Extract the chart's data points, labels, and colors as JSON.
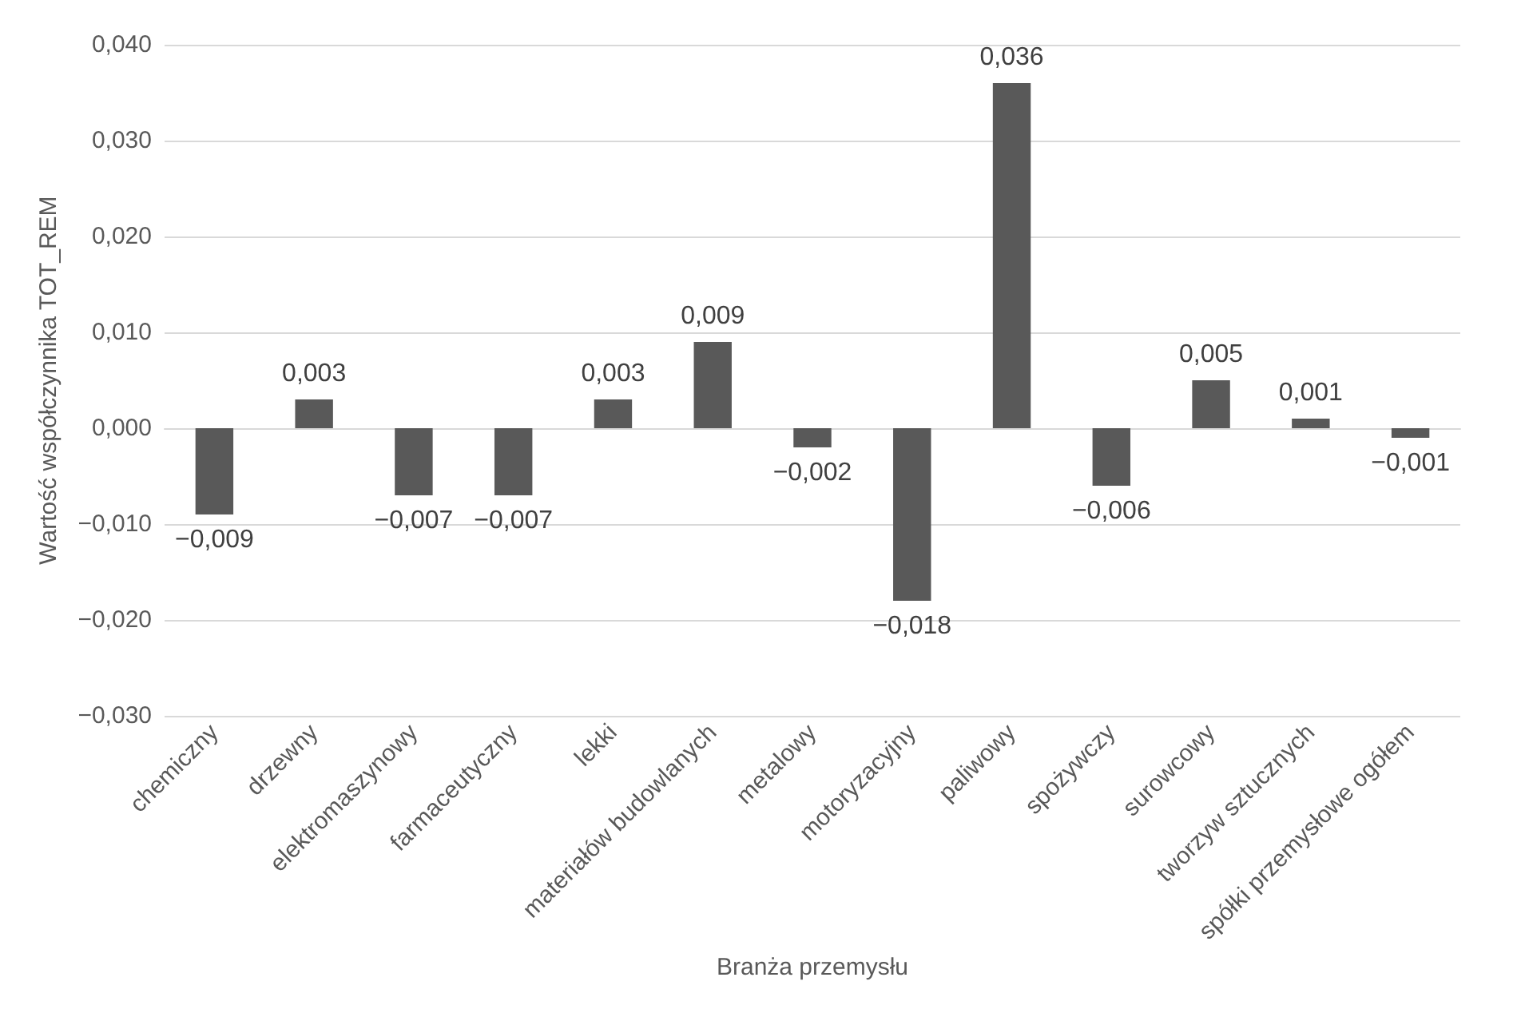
{
  "chart_data": {
    "type": "bar",
    "xlabel": "Branża przemysłu",
    "ylabel": "Wartość współczynnika TOT_REM",
    "categories": [
      "chemiczny",
      "drzewny",
      "elektromaszynowy",
      "farmaceutyczny",
      "lekki",
      "materiałów budowlanych",
      "metalowy",
      "motoryzacyjny",
      "paliwowy",
      "spożywczy",
      "surowcowy",
      "tworzyw sztucznych",
      "spółki przemysłowe ogółem"
    ],
    "values": [
      -0.009,
      0.003,
      -0.007,
      -0.007,
      0.003,
      0.009,
      -0.002,
      -0.018,
      0.036,
      -0.006,
      0.005,
      0.001,
      -0.001
    ],
    "value_labels": [
      "−0,009",
      "0,003",
      "−0,007",
      "−0,007",
      "0,003",
      "0,009",
      "−0,002",
      "−0,018",
      "0,036",
      "−0,006",
      "0,005",
      "0,001",
      "−0,001"
    ],
    "color": "#595959",
    "ylim": [
      -0.03,
      0.04
    ],
    "yticks": [
      {
        "value": -0.03,
        "label": "−0,030"
      },
      {
        "value": -0.02,
        "label": "−0,020"
      },
      {
        "value": -0.01,
        "label": "−0,010"
      },
      {
        "value": 0,
        "label": "0,000"
      },
      {
        "value": 0.01,
        "label": "0,010"
      },
      {
        "value": 0.02,
        "label": "0,020"
      },
      {
        "value": 0.03,
        "label": "0,030"
      },
      {
        "value": 0.04,
        "label": "0,040"
      }
    ],
    "grid": "y"
  }
}
